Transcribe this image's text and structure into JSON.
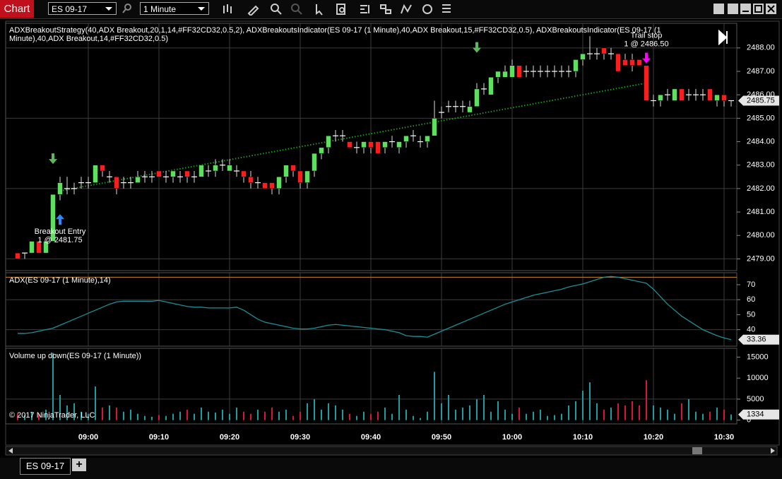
{
  "window": {
    "tab": "Chart",
    "instrument": "ES 09-17",
    "interval": "1 Minute",
    "bottom_tab": "ES 09-17",
    "add_tab": "+"
  },
  "price_panel": {
    "type": "candlestick",
    "legend": "ADXBreakoutStrategy(40,ADX Breakout,20,1,14,#FF32CD32,0.5,2), ADXBreakoutsIndicator(ES 09-17 (1 Minute),40,ADX Breakout,15,#FF32CD32,0.5), ADXBreakoutsIndicator(ES 09-17 (1 Minute),40,ADX Breakout,14,#FF32CD32,0.5)",
    "up_color": "#5de05d",
    "down_color": "#ff1c1c",
    "ylim": [
      2478.5,
      2489.05
    ],
    "yticks": [
      {
        "value": 2479,
        "label": "2479.00"
      },
      {
        "value": 2480,
        "label": "2480.00"
      },
      {
        "value": 2481,
        "label": "2481.00"
      },
      {
        "value": 2482,
        "label": "2482.00"
      },
      {
        "value": 2483,
        "label": "2483.00"
      },
      {
        "value": 2484,
        "label": "2484.00"
      },
      {
        "value": 2485,
        "label": "2485.00"
      },
      {
        "value": 2486,
        "label": "2486.00"
      },
      {
        "value": 2487,
        "label": "2487.00"
      },
      {
        "value": 2488,
        "label": "2488.00"
      }
    ],
    "grid_yticks": [
      2479,
      2482,
      2485,
      2488
    ],
    "last_label": "2485.75",
    "candles": [
      [
        2479.25,
        2479.25,
        2479.0,
        2479.0
      ],
      [
        2479.25,
        2479.25,
        2479.0,
        2479.25
      ],
      [
        2479.25,
        2479.75,
        2479.25,
        2479.75
      ],
      [
        2479.75,
        2479.75,
        2479.25,
        2479.25
      ],
      [
        2479.25,
        2479.75,
        2479.25,
        2479.75
      ],
      [
        2479.75,
        2481.75,
        2479.75,
        2481.75
      ],
      [
        2481.75,
        2482.5,
        2481.5,
        2482.25
      ],
      [
        2482.0,
        2482.5,
        2481.75,
        2482.0
      ],
      [
        2482.0,
        2482.25,
        2481.75,
        2482.0
      ],
      [
        2482.25,
        2482.5,
        2482.0,
        2482.25
      ],
      [
        2482.25,
        2482.5,
        2482.0,
        2482.25
      ],
      [
        2482.25,
        2483.0,
        2482.25,
        2483.0
      ],
      [
        2483.0,
        2483.0,
        2482.5,
        2482.75
      ],
      [
        2482.5,
        2482.75,
        2482.25,
        2482.5
      ],
      [
        2482.5,
        2482.5,
        2481.75,
        2482.0
      ],
      [
        2482.25,
        2482.5,
        2482.0,
        2482.25
      ],
      [
        2482.25,
        2482.5,
        2482.0,
        2482.25
      ],
      [
        2482.25,
        2482.75,
        2482.25,
        2482.5
      ],
      [
        2482.5,
        2482.75,
        2482.25,
        2482.5
      ],
      [
        2482.5,
        2482.75,
        2482.25,
        2482.5
      ],
      [
        2482.75,
        2482.75,
        2482.5,
        2482.5
      ],
      [
        2482.5,
        2482.75,
        2482.25,
        2482.5
      ],
      [
        2482.5,
        2482.75,
        2482.25,
        2482.75
      ],
      [
        2482.5,
        2482.75,
        2482.25,
        2482.5
      ],
      [
        2482.75,
        2482.75,
        2482.25,
        2482.5
      ],
      [
        2482.5,
        2482.75,
        2482.25,
        2482.5
      ],
      [
        2482.5,
        2483.0,
        2482.5,
        2483.0
      ],
      [
        2482.75,
        2483.0,
        2482.5,
        2482.75
      ],
      [
        2482.75,
        2483.25,
        2482.5,
        2483.0
      ],
      [
        2483.0,
        2483.25,
        2482.75,
        2483.0
      ],
      [
        2482.75,
        2483.25,
        2482.75,
        2483.0
      ],
      [
        2482.75,
        2483.0,
        2482.5,
        2482.75
      ],
      [
        2482.75,
        2482.75,
        2482.25,
        2482.5
      ],
      [
        2482.5,
        2482.75,
        2482.0,
        2482.25
      ],
      [
        2482.25,
        2482.5,
        2482.0,
        2482.25
      ],
      [
        2482.25,
        2482.25,
        2482.0,
        2482.0
      ],
      [
        2482.25,
        2482.25,
        2481.75,
        2482.0
      ],
      [
        2482.0,
        2482.5,
        2481.75,
        2482.5
      ],
      [
        2482.5,
        2483.0,
        2482.25,
        2483.0
      ],
      [
        2483.0,
        2483.0,
        2482.5,
        2482.75
      ],
      [
        2482.75,
        2482.75,
        2482.0,
        2482.25
      ],
      [
        2482.25,
        2482.75,
        2482.0,
        2482.75
      ],
      [
        2482.75,
        2483.5,
        2482.5,
        2483.5
      ],
      [
        2483.5,
        2483.75,
        2483.25,
        2483.75
      ],
      [
        2483.75,
        2484.25,
        2483.5,
        2484.25
      ],
      [
        2484.25,
        2484.5,
        2484.0,
        2484.25
      ],
      [
        2484.25,
        2484.5,
        2484.0,
        2484.25
      ],
      [
        2484.0,
        2484.0,
        2483.75,
        2483.75
      ],
      [
        2483.75,
        2484.0,
        2483.5,
        2483.75
      ],
      [
        2483.75,
        2484.0,
        2483.5,
        2484.0
      ],
      [
        2484.0,
        2484.0,
        2483.5,
        2483.75
      ],
      [
        2484.0,
        2484.0,
        2483.5,
        2483.5
      ],
      [
        2483.75,
        2484.0,
        2483.5,
        2484.0
      ],
      [
        2484.0,
        2484.25,
        2483.75,
        2484.0
      ],
      [
        2483.75,
        2484.0,
        2483.5,
        2484.0
      ],
      [
        2484.0,
        2484.25,
        2483.75,
        2484.25
      ],
      [
        2484.25,
        2484.5,
        2484.0,
        2484.25
      ],
      [
        2484.0,
        2484.25,
        2483.75,
        2484.0
      ],
      [
        2484.0,
        2484.25,
        2483.75,
        2484.25
      ],
      [
        2484.25,
        2485.75,
        2484.25,
        2485.0
      ],
      [
        2485.25,
        2485.5,
        2485.0,
        2485.25
      ],
      [
        2485.5,
        2485.75,
        2485.25,
        2485.5
      ],
      [
        2485.5,
        2485.75,
        2485.25,
        2485.5
      ],
      [
        2485.5,
        2485.75,
        2485.25,
        2485.5
      ],
      [
        2485.25,
        2485.75,
        2485.25,
        2485.5
      ],
      [
        2485.5,
        2486.5,
        2485.5,
        2486.25
      ],
      [
        2486.25,
        2486.5,
        2486.0,
        2486.25
      ],
      [
        2486.0,
        2486.75,
        2486.0,
        2486.75
      ],
      [
        2486.75,
        2487.0,
        2486.5,
        2487.0
      ],
      [
        2486.75,
        2487.25,
        2486.75,
        2487.0
      ],
      [
        2486.75,
        2487.5,
        2486.75,
        2487.25
      ],
      [
        2487.25,
        2487.25,
        2486.75,
        2486.75
      ],
      [
        2487.0,
        2487.25,
        2486.75,
        2487.0
      ],
      [
        2487.0,
        2487.25,
        2486.75,
        2487.0
      ],
      [
        2487.0,
        2487.25,
        2486.75,
        2487.0
      ],
      [
        2487.0,
        2487.25,
        2486.75,
        2487.0
      ],
      [
        2487.0,
        2487.25,
        2486.75,
        2487.0
      ],
      [
        2487.0,
        2487.25,
        2486.75,
        2487.0
      ],
      [
        2487.0,
        2487.25,
        2486.75,
        2487.0
      ],
      [
        2487.0,
        2487.5,
        2486.75,
        2487.5
      ],
      [
        2487.5,
        2487.75,
        2487.25,
        2487.75
      ],
      [
        2487.75,
        2488.5,
        2487.5,
        2487.75
      ],
      [
        2487.75,
        2488.0,
        2487.5,
        2487.75
      ],
      [
        2488.0,
        2488.0,
        2487.5,
        2487.75
      ],
      [
        2487.75,
        2488.0,
        2487.5,
        2487.75
      ],
      [
        2487.75,
        2487.75,
        2487.0,
        2487.0
      ],
      [
        2487.5,
        2487.75,
        2487.25,
        2487.25
      ],
      [
        2487.5,
        2487.75,
        2487.0,
        2487.25
      ],
      [
        2487.5,
        2487.5,
        2487.25,
        2487.25
      ],
      [
        2487.25,
        2487.25,
        2485.75,
        2485.75
      ],
      [
        2485.75,
        2486.0,
        2485.5,
        2485.75
      ],
      [
        2485.75,
        2486.0,
        2485.5,
        2486.0
      ],
      [
        2486.0,
        2486.25,
        2485.75,
        2486.0
      ],
      [
        2485.75,
        2486.25,
        2485.75,
        2486.25
      ],
      [
        2486.25,
        2486.25,
        2485.75,
        2485.75
      ],
      [
        2486.0,
        2486.25,
        2485.75,
        2486.0
      ],
      [
        2486.0,
        2486.25,
        2485.75,
        2486.0
      ],
      [
        2486.0,
        2486.25,
        2485.75,
        2486.0
      ],
      [
        2486.25,
        2486.25,
        2485.75,
        2485.75
      ],
      [
        2485.75,
        2486.0,
        2485.5,
        2486.0
      ],
      [
        2486.0,
        2486.0,
        2485.5,
        2485.75
      ],
      [
        2485.75,
        2485.75,
        2485.5,
        2485.75
      ]
    ],
    "trend_line": {
      "color": "#1f9a1f",
      "from": [
        6,
        2481.9
      ],
      "to": [
        89,
        2486.5
      ]
    },
    "signals": [
      {
        "bar": 5,
        "color": "#5cb85c"
      },
      {
        "bar": 65,
        "color": "#5cb85c"
      }
    ],
    "executions": [
      {
        "bar": 6,
        "kind": "entry",
        "label": "Breakout Entry",
        "detail": "1 @ 2481.75",
        "price": 2481.75,
        "color": "#2a8cff"
      },
      {
        "bar": 89,
        "kind": "exit",
        "label": "Trail stop",
        "detail": "1 @ 2486.50",
        "price": 2486.5,
        "color": "#ff00ff"
      }
    ]
  },
  "adx_panel": {
    "type": "line",
    "legend": "ADX(ES 09-17 (1 Minute),14)",
    "color": "#1c8f97",
    "threshold": 75,
    "threshold_color": "#c98a2a",
    "ylim": [
      29,
      78
    ],
    "yticks": [
      40,
      50,
      60,
      70
    ],
    "grid_yticks": [
      40,
      60
    ],
    "last_label": "33.36",
    "values": [
      37.5,
      37.5,
      38,
      39,
      40,
      41,
      43,
      45,
      47,
      49,
      51,
      53,
      55,
      57,
      58.5,
      59,
      59,
      59,
      59,
      59,
      59.5,
      58.5,
      57.5,
      56.5,
      55.5,
      55,
      55,
      54.5,
      54.5,
      54.5,
      54.5,
      55,
      53,
      50,
      47,
      45,
      44,
      43,
      42,
      41,
      40.5,
      40.5,
      41,
      42,
      43,
      43.5,
      43,
      42.5,
      42,
      41.5,
      41,
      40.5,
      40,
      39,
      38,
      36,
      35.5,
      35.5,
      35,
      37,
      39,
      41,
      43,
      45,
      47,
      49,
      51,
      53,
      55,
      57,
      58.5,
      60,
      61.5,
      63,
      64,
      65,
      66,
      67,
      68.5,
      69.5,
      70.5,
      72,
      73.5,
      75,
      75.5,
      75,
      74,
      73,
      72,
      71,
      67,
      62,
      57,
      53,
      49,
      46,
      43,
      40,
      38,
      36,
      34.5,
      33.36
    ]
  },
  "volume_panel": {
    "type": "bar",
    "legend": "Volume up down(ES 09-17 (1 Minute))",
    "up_color": "#1a9ea0",
    "down_color": "#d8163a",
    "copyright": "© 2017 NinjaTrader, LLC",
    "ylim": [
      -900,
      17100
    ],
    "yticks": [
      0,
      5000,
      10000,
      15000
    ],
    "grid_yticks": [
      5000
    ],
    "last_label": "1334",
    "values": [
      1500,
      1200,
      2000,
      1500,
      2500,
      16000,
      6000,
      3500,
      4000,
      2000,
      1500,
      8000,
      3000,
      3500,
      3000,
      2000,
      2500,
      1500,
      1000,
      800,
      1200,
      1000,
      1500,
      2000,
      2500,
      1500,
      3000,
      2000,
      1800,
      2500,
      1500,
      3000,
      2000,
      1500,
      2500,
      2000,
      3000,
      2000,
      2500,
      1000,
      2000,
      4000,
      5000,
      2500,
      4000,
      3500,
      2500,
      1500,
      1000,
      2000,
      1500,
      2000,
      3000,
      1500,
      6000,
      2500,
      1000,
      500,
      2000,
      11500,
      4000,
      6000,
      2500,
      3000,
      3500,
      5000,
      6000,
      2000,
      4500,
      2500,
      1500,
      3000,
      1500,
      2000,
      2500,
      1000,
      1200,
      1500,
      3500,
      4500,
      7000,
      9000,
      4000,
      2500,
      3000,
      4000,
      3500,
      4500,
      3500,
      9500,
      3500,
      3000,
      2500,
      1500,
      4000,
      5000,
      2000,
      1500,
      2000,
      3000,
      2500,
      1334
    ]
  },
  "time_axis": {
    "ticks": [
      {
        "bar": 10,
        "label": "09:00"
      },
      {
        "bar": 20,
        "label": "09:10"
      },
      {
        "bar": 30,
        "label": "09:20"
      },
      {
        "bar": 40,
        "label": "09:30"
      },
      {
        "bar": 50,
        "label": "09:40"
      },
      {
        "bar": 60,
        "label": "09:50"
      },
      {
        "bar": 70,
        "label": "10:00"
      },
      {
        "bar": 80,
        "label": "10:10"
      },
      {
        "bar": 90,
        "label": "10:20"
      },
      {
        "bar": 100,
        "label": "10:30"
      }
    ]
  }
}
